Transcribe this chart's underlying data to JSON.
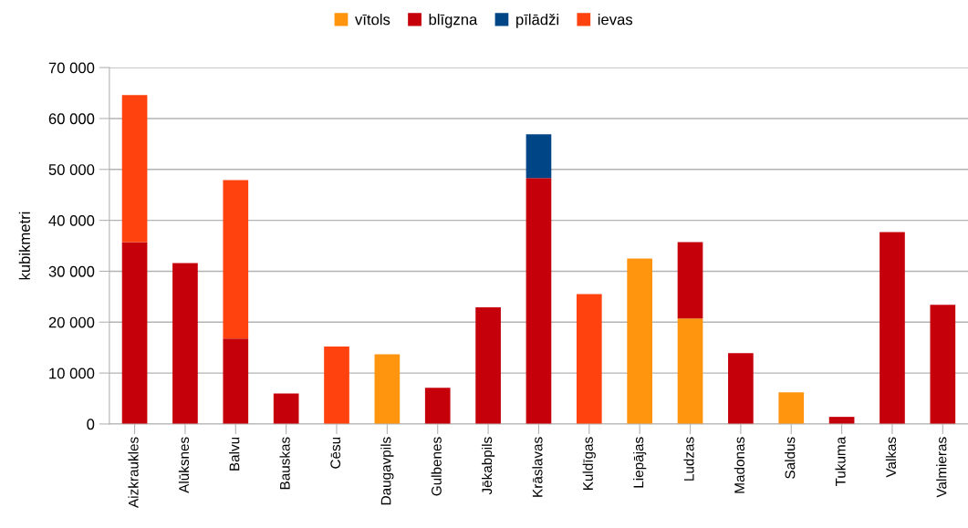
{
  "chart_data": {
    "type": "bar",
    "stacked": true,
    "ylabel": "kubikmetri",
    "categories": [
      "Aizkraukles",
      "Alūksnes",
      "Balvu",
      "Bauskas",
      "Cēsu",
      "Daugavpils",
      "Gulbenes",
      "Jēkabpils",
      "Krāslavas",
      "Kuldīgas",
      "Liepājas",
      "Ludzas",
      "Madonas",
      "Saldus",
      "Tukuma",
      "Valkas",
      "Valmieras"
    ],
    "series": [
      {
        "name": "vītols",
        "color": "#ff950e",
        "values": [
          null,
          null,
          null,
          null,
          null,
          13700,
          null,
          null,
          null,
          null,
          32500,
          20700,
          null,
          6200,
          null,
          null,
          null
        ]
      },
      {
        "name": "blīgzna",
        "color": "#c5000b",
        "values": [
          35700,
          31600,
          16800,
          6000,
          null,
          null,
          7100,
          22900,
          48300,
          null,
          null,
          15000,
          13900,
          null,
          1400,
          37700,
          23400
        ]
      },
      {
        "name": "pīlādži",
        "color": "#004586",
        "values": [
          null,
          null,
          null,
          null,
          null,
          null,
          null,
          null,
          8600,
          null,
          null,
          null,
          null,
          null,
          null,
          null,
          null
        ]
      },
      {
        "name": "ievas",
        "color": "#ff420e",
        "values": [
          28900,
          null,
          31100,
          null,
          15200,
          null,
          null,
          null,
          null,
          25500,
          null,
          null,
          null,
          null,
          null,
          null,
          null
        ]
      }
    ],
    "ylim": [
      0,
      70000
    ],
    "yticks": [
      0,
      {
        "value": 10000,
        "label": "10 000"
      },
      {
        "value": 20000,
        "label": "20 000"
      },
      {
        "value": 30000,
        "label": "30 000"
      },
      {
        "value": 40000,
        "label": "40 000"
      },
      {
        "value": 50000,
        "label": "50 000"
      },
      {
        "value": 60000,
        "label": "60 000"
      },
      {
        "value": 70000,
        "label": "70 000"
      }
    ],
    "grid": "y",
    "legend": "top"
  }
}
